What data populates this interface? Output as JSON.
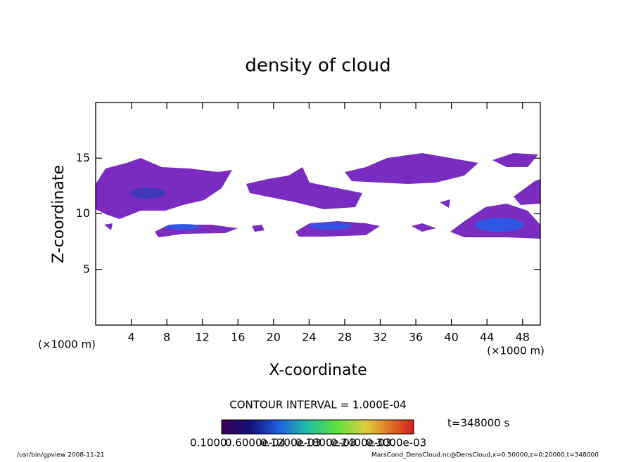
{
  "chart_data": {
    "type": "shaded-contour",
    "title": "density of cloud",
    "x_label": "X-coordinate",
    "y_label": "Z-coordinate",
    "x_unit": "(×1000 m)",
    "xlim": [
      0,
      50
    ],
    "xticks": [
      4,
      8,
      12,
      16,
      20,
      24,
      28,
      32,
      36,
      40,
      44,
      48
    ],
    "ylim": [
      0,
      20
    ],
    "yticks": [
      5,
      10,
      15
    ],
    "contour_interval": "CONTOUR INTERVAL = 1.000E-04",
    "time": "t=348000 s",
    "colorbar_labels": [
      "0.1000",
      "0.6000e-04",
      "0.1200e-03",
      "0.1800e-03",
      "0.2400e-03",
      "0.3000e-03"
    ],
    "footer_left": "/usr/bin/gpview   2008-11-21",
    "footer_right": "MarsCond_DensCloud.nc@DensCloud,x=0:50000,z=0:20000,t=348000"
  }
}
